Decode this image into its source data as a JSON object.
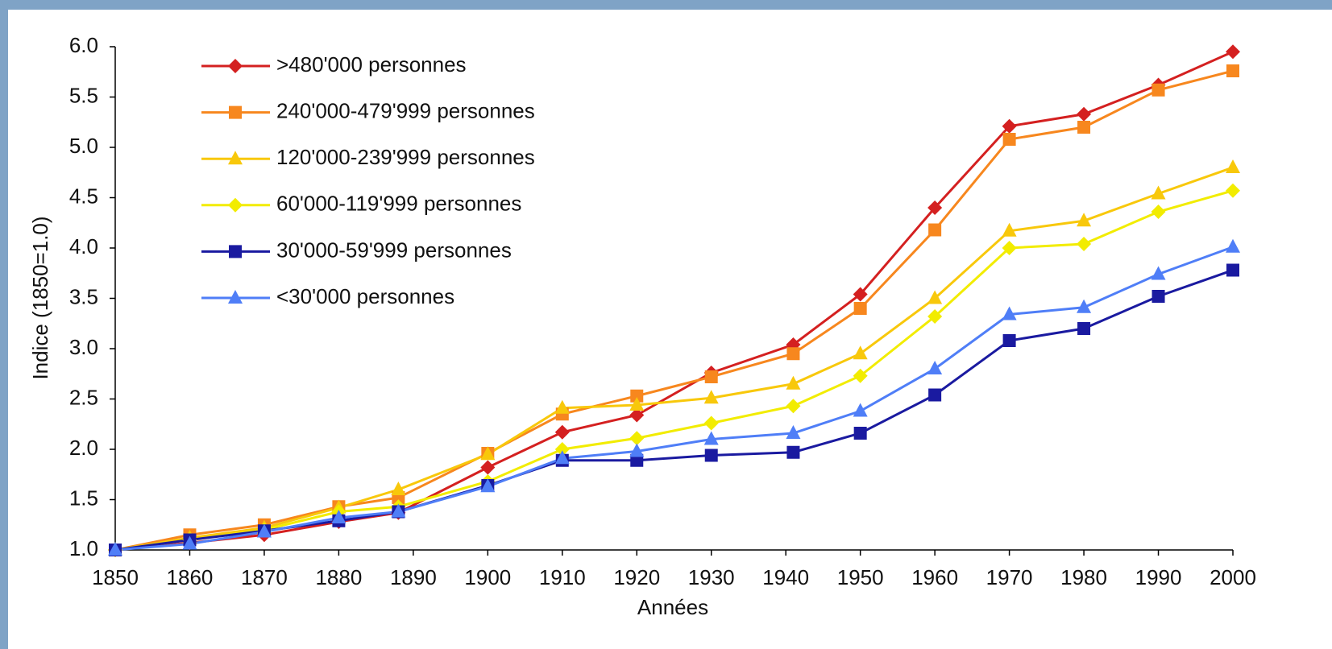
{
  "chart_data": {
    "type": "line",
    "xlabel": "Années",
    "ylabel": "Indice (1850=1.0)",
    "x": [
      1850,
      1860,
      1870,
      1880,
      1888,
      1900,
      1910,
      1920,
      1930,
      1941,
      1950,
      1960,
      1970,
      1980,
      1990,
      2000
    ],
    "series": [
      {
        "name": ">480'000 personnes",
        "color": "#d42020",
        "marker": "diamond",
        "values": [
          1.0,
          1.07,
          1.15,
          1.28,
          1.37,
          1.82,
          2.17,
          2.34,
          2.76,
          3.04,
          3.54,
          4.4,
          5.21,
          5.33,
          5.62,
          5.95
        ]
      },
      {
        "name": "240'000-479'999 personnes",
        "color": "#f7871e",
        "marker": "square",
        "values": [
          1.0,
          1.15,
          1.25,
          1.43,
          1.52,
          1.96,
          2.35,
          2.53,
          2.72,
          2.95,
          3.4,
          4.18,
          5.08,
          5.2,
          5.57,
          5.76
        ]
      },
      {
        "name": "120'000-239'999 personnes",
        "color": "#f8c80b",
        "marker": "triangle",
        "values": [
          1.0,
          1.12,
          1.22,
          1.42,
          1.6,
          1.95,
          2.41,
          2.44,
          2.51,
          2.65,
          2.95,
          3.5,
          4.17,
          4.27,
          4.54,
          4.8
        ]
      },
      {
        "name": "60'000-119'999 personnes",
        "color": "#f2ec00",
        "marker": "diamond",
        "values": [
          1.0,
          1.1,
          1.2,
          1.38,
          1.43,
          1.68,
          2.0,
          2.11,
          2.26,
          2.43,
          2.73,
          3.32,
          4.0,
          4.04,
          4.36,
          4.57
        ]
      },
      {
        "name": "30'000-59'999 personnes",
        "color": "#1a1aa0",
        "marker": "square",
        "values": [
          1.0,
          1.1,
          1.19,
          1.29,
          1.38,
          1.64,
          1.89,
          1.89,
          1.94,
          1.97,
          2.16,
          2.54,
          3.08,
          3.2,
          3.52,
          3.78
        ]
      },
      {
        "name": "<30'000 personnes",
        "color": "#4f7ef7",
        "marker": "triangle",
        "values": [
          1.0,
          1.06,
          1.18,
          1.32,
          1.38,
          1.63,
          1.91,
          1.98,
          2.1,
          2.16,
          2.38,
          2.8,
          3.34,
          3.41,
          3.74,
          4.01
        ]
      }
    ],
    "xlim": [
      1850,
      2000
    ],
    "xticks": [
      1850,
      1860,
      1870,
      1880,
      1890,
      1900,
      1910,
      1920,
      1930,
      1940,
      1950,
      1960,
      1970,
      1980,
      1990,
      2000
    ],
    "ylim": [
      1,
      6
    ],
    "yticks": [
      {
        "value": 1,
        "label": "1.0"
      },
      1.5,
      {
        "value": 2,
        "label": "2.0"
      },
      2.5,
      {
        "value": 3,
        "label": "3.0"
      },
      3.5,
      {
        "value": 4,
        "label": "4.0"
      },
      4.5,
      {
        "value": 5,
        "label": "5.0"
      },
      5.5,
      {
        "value": 6,
        "label": "6.0"
      }
    ],
    "grid": false,
    "legend": "upper left"
  }
}
